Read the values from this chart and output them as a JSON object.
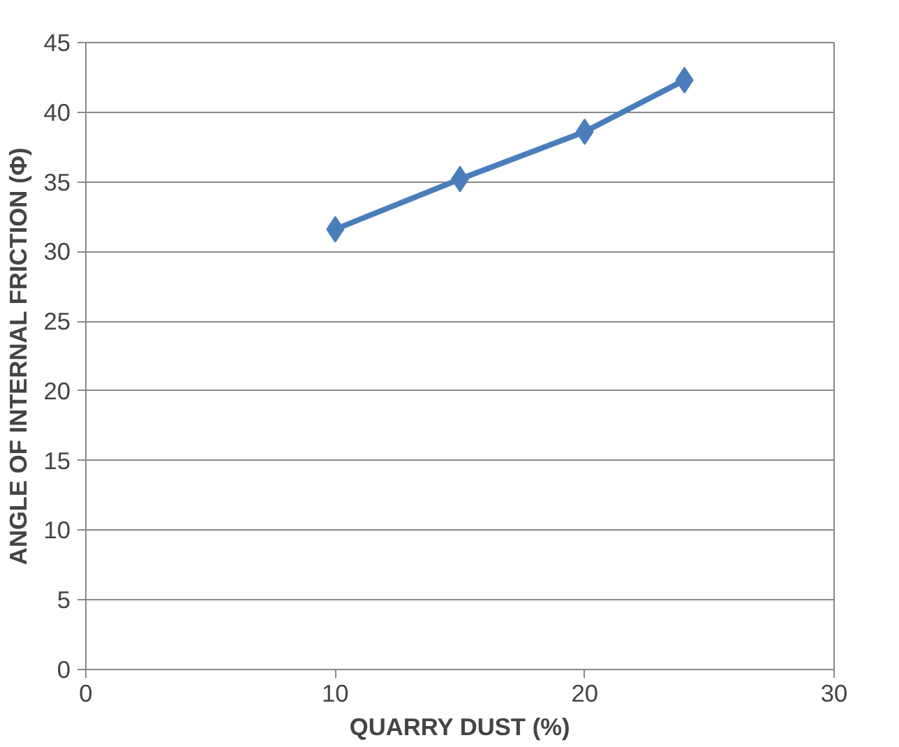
{
  "chart_data": {
    "type": "line",
    "xlabel": "QUARRY DUST (%)",
    "ylabel": "ANGLE OF INTERNAL FRICTION (Φ)",
    "x": [
      10,
      15,
      20,
      24
    ],
    "series": [
      {
        "color": "#4a7ebb",
        "values": [
          31.6,
          35.2,
          38.6,
          42.3
        ]
      }
    ],
    "xlim": [
      0,
      30
    ],
    "xticks": [
      0,
      10,
      20,
      30
    ],
    "ylim": [
      0,
      45
    ],
    "yticks": [
      0,
      5,
      10,
      15,
      20,
      25,
      30,
      35,
      40,
      45
    ],
    "grid": "y",
    "marker": "diamond",
    "line_style": "solid"
  }
}
